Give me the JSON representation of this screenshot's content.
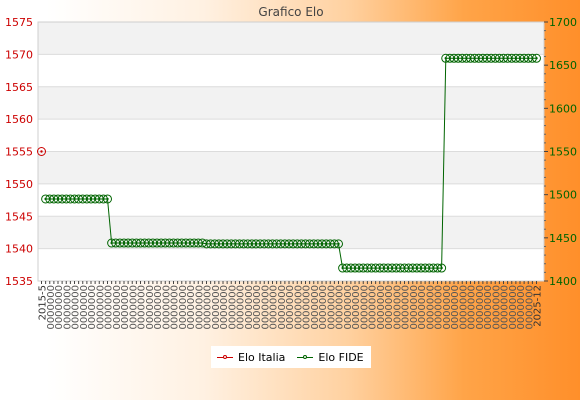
{
  "chart_data": {
    "type": "line",
    "title": "Grafico Elo",
    "y_left": {
      "ticks": [
        1535,
        1540,
        1545,
        1550,
        1555,
        1560,
        1565,
        1570,
        1575
      ],
      "ylim": [
        1535,
        1575
      ],
      "color": "#cc0000"
    },
    "y_right": {
      "ticks": [
        1400,
        1450,
        1500,
        1550,
        1600,
        1650,
        1700
      ],
      "ylim": [
        1400,
        1700
      ],
      "color": "#006400"
    },
    "x_first_label": "2015-5",
    "x_last_label": "2025-12",
    "x_count": 121,
    "series": [
      {
        "name": "Elo Italia",
        "axis": "left",
        "color": "#cc0000",
        "points": [
          [
            0,
            1555
          ]
        ]
      },
      {
        "name": "Elo FIDE",
        "axis": "right",
        "color": "#006400",
        "steps": [
          {
            "from": 1,
            "to": 16,
            "value": 1495
          },
          {
            "from": 17,
            "to": 39,
            "value": 1444
          },
          {
            "from": 40,
            "to": 72,
            "value": 1443
          },
          {
            "from": 73,
            "to": 97,
            "value": 1415
          },
          {
            "from": 98,
            "to": 120,
            "value": 1658
          }
        ]
      }
    ],
    "legend": {
      "placement": "bottom-center",
      "items": [
        "Elo Italia",
        "Elo FIDE"
      ]
    },
    "grid": {
      "horizontal": true,
      "alternating_bands": true
    }
  }
}
